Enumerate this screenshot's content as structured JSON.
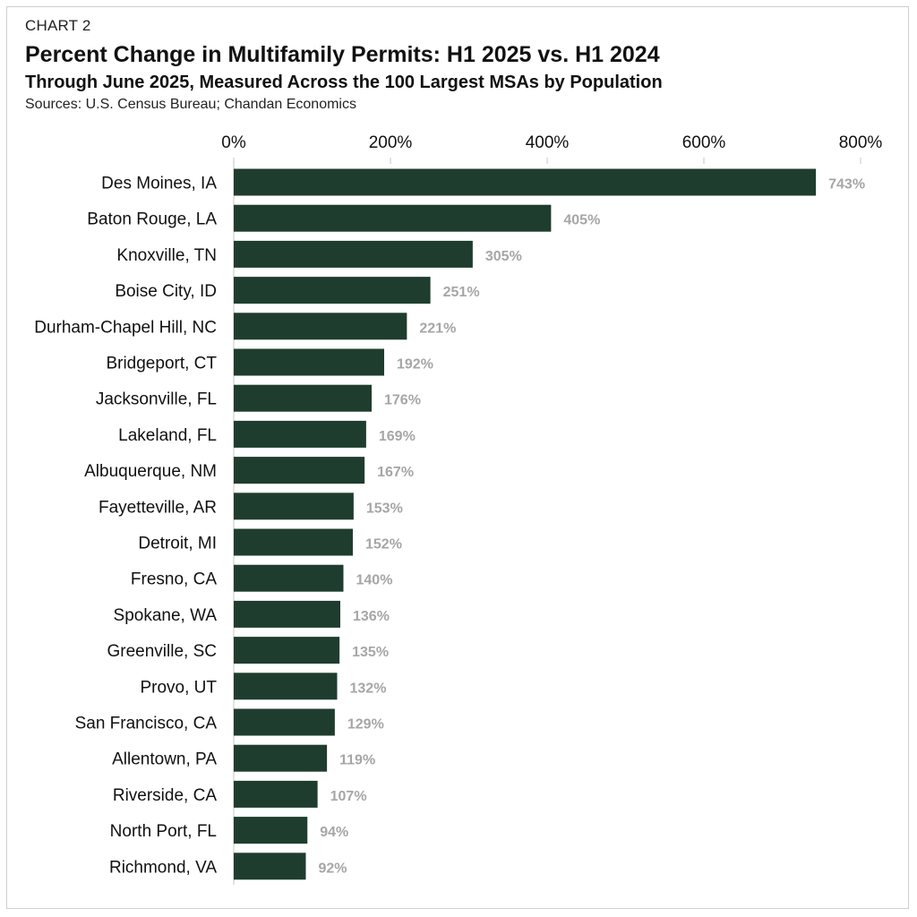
{
  "header": {
    "eyebrow": "CHART 2",
    "title": "Percent Change in Multifamily Permits: H1 2025 vs. H1 2024",
    "subtitle": "Through June 2025, Measured Across the 100 Largest MSAs by Population",
    "sources": "Sources: U.S. Census Bureau; Chandan Economics"
  },
  "colors": {
    "bar": "#1f3d2e",
    "value_label": "#a6a6a6",
    "axis": "#d9d9d9"
  },
  "chart_data": {
    "type": "bar",
    "orientation": "horizontal",
    "xaxis_position": "top",
    "xlim": [
      0,
      800
    ],
    "xticks": [
      0,
      200,
      400,
      600,
      800
    ],
    "xtick_labels": [
      "0%",
      "200%",
      "400%",
      "600%",
      "800%"
    ],
    "categories": [
      "Des Moines, IA",
      "Baton Rouge, LA",
      "Knoxville, TN",
      "Boise City, ID",
      "Durham-Chapel Hill, NC",
      "Bridgeport, CT",
      "Jacksonville, FL",
      "Lakeland, FL",
      "Albuquerque, NM",
      "Fayetteville, AR",
      "Detroit, MI",
      "Fresno, CA",
      "Spokane, WA",
      "Greenville, SC",
      "Provo, UT",
      "San Francisco, CA",
      "Allentown, PA",
      "Riverside, CA",
      "North Port, FL",
      "Richmond, VA"
    ],
    "values": [
      743,
      405,
      305,
      251,
      221,
      192,
      176,
      169,
      167,
      153,
      152,
      140,
      136,
      135,
      132,
      129,
      119,
      107,
      94,
      92
    ],
    "value_labels": [
      "743%",
      "405%",
      "305%",
      "251%",
      "221%",
      "192%",
      "176%",
      "169%",
      "167%",
      "153%",
      "152%",
      "140%",
      "136%",
      "135%",
      "132%",
      "129%",
      "119%",
      "107%",
      "94%",
      "92%"
    ],
    "grid": false,
    "legend": "none"
  }
}
